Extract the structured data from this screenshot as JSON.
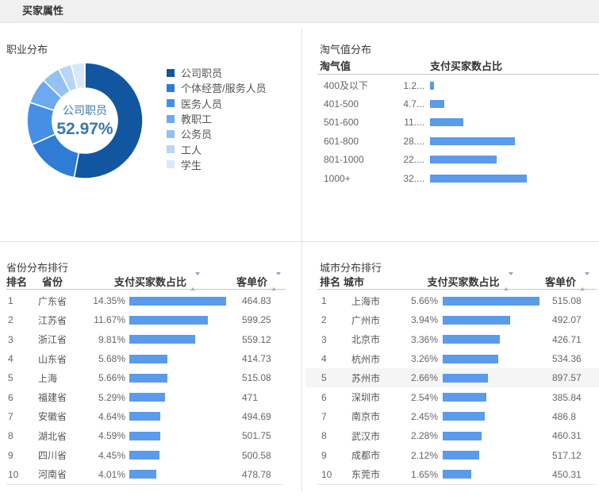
{
  "header": {
    "title": "买家属性"
  },
  "colors": {
    "bar": "#5a9beb",
    "pie": [
      "#1356a0",
      "#2e7cd4",
      "#4590e6",
      "#6ca9ee",
      "#93c1f3",
      "#b8d5f7",
      "#d8e7fb"
    ],
    "center_text": "#3779b3",
    "highlight_row": "#f5f5f5"
  },
  "occupation": {
    "title": "职业分布",
    "center_label": "公司职员",
    "center_value": "52.97%",
    "legend": [
      "公司职员",
      "个体经营/服务人员",
      "医务人员",
      "教职工",
      "公务员",
      "工人",
      "学生"
    ]
  },
  "taoqi": {
    "title": "淘气值分布",
    "columns": {
      "label": "淘气值",
      "value": "支付买家数占比"
    },
    "rows": [
      {
        "label": "400及以下",
        "value_text": "1.2...",
        "value": 1.2
      },
      {
        "label": "401-500",
        "value_text": "4.7...",
        "value": 4.7
      },
      {
        "label": "501-600",
        "value_text": "11....",
        "value": 11
      },
      {
        "label": "601-800",
        "value_text": "28....",
        "value": 28
      },
      {
        "label": "801-1000",
        "value_text": "22....",
        "value": 22
      },
      {
        "label": "1000+",
        "value_text": "32....",
        "value": 32
      }
    ]
  },
  "province": {
    "title": "省份分布排行",
    "headers": {
      "rank": "排名",
      "name": "省份",
      "pct": "支付买家数占比",
      "price": "客单价"
    },
    "rows": [
      {
        "rank": "1",
        "name": "广东省",
        "pct": "14.35%",
        "pct_value": 14.35,
        "price": "464.83",
        "highlighted": false
      },
      {
        "rank": "2",
        "name": "江苏省",
        "pct": "11.67%",
        "pct_value": 11.67,
        "price": "599.25",
        "highlighted": false
      },
      {
        "rank": "3",
        "name": "浙江省",
        "pct": "9.81%",
        "pct_value": 9.81,
        "price": "559.12",
        "highlighted": false
      },
      {
        "rank": "4",
        "name": "山东省",
        "pct": "5.68%",
        "pct_value": 5.68,
        "price": "414.73",
        "highlighted": false
      },
      {
        "rank": "5",
        "name": "上海",
        "pct": "5.66%",
        "pct_value": 5.66,
        "price": "515.08",
        "highlighted": false
      },
      {
        "rank": "6",
        "name": "福建省",
        "pct": "5.29%",
        "pct_value": 5.29,
        "price": "471",
        "highlighted": false
      },
      {
        "rank": "7",
        "name": "安徽省",
        "pct": "4.64%",
        "pct_value": 4.64,
        "price": "494.69",
        "highlighted": false
      },
      {
        "rank": "8",
        "name": "湖北省",
        "pct": "4.59%",
        "pct_value": 4.59,
        "price": "501.75",
        "highlighted": false
      },
      {
        "rank": "9",
        "name": "四川省",
        "pct": "4.45%",
        "pct_value": 4.45,
        "price": "500.58",
        "highlighted": false
      },
      {
        "rank": "10",
        "name": "河南省",
        "pct": "4.01%",
        "pct_value": 4.01,
        "price": "478.78",
        "highlighted": false
      }
    ]
  },
  "city": {
    "title": "城市分布排行",
    "headers": {
      "rank": "排名",
      "name": "城市",
      "pct": "支付买家数占比",
      "price": "客单价"
    },
    "rows": [
      {
        "rank": "1",
        "name": "上海市",
        "pct": "5.66%",
        "pct_value": 5.66,
        "price": "515.08",
        "highlighted": false
      },
      {
        "rank": "2",
        "name": "广州市",
        "pct": "3.94%",
        "pct_value": 3.94,
        "price": "492.07",
        "highlighted": false
      },
      {
        "rank": "3",
        "name": "北京市",
        "pct": "3.36%",
        "pct_value": 3.36,
        "price": "426.71",
        "highlighted": false
      },
      {
        "rank": "4",
        "name": "杭州市",
        "pct": "3.26%",
        "pct_value": 3.26,
        "price": "534.36",
        "highlighted": false
      },
      {
        "rank": "5",
        "name": "苏州市",
        "pct": "2.66%",
        "pct_value": 2.66,
        "price": "897.57",
        "highlighted": true
      },
      {
        "rank": "6",
        "name": "深圳市",
        "pct": "2.54%",
        "pct_value": 2.54,
        "price": "385.84",
        "highlighted": false
      },
      {
        "rank": "7",
        "name": "南京市",
        "pct": "2.45%",
        "pct_value": 2.45,
        "price": "486.8",
        "highlighted": false
      },
      {
        "rank": "8",
        "name": "武汉市",
        "pct": "2.28%",
        "pct_value": 2.28,
        "price": "460.31",
        "highlighted": false
      },
      {
        "rank": "9",
        "name": "成都市",
        "pct": "2.12%",
        "pct_value": 2.12,
        "price": "517.12",
        "highlighted": false
      },
      {
        "rank": "10",
        "name": "东莞市",
        "pct": "1.65%",
        "pct_value": 1.65,
        "price": "450.31",
        "highlighted": false
      }
    ]
  },
  "chart_data": [
    {
      "type": "pie",
      "title": "职业分布",
      "donut": true,
      "legend_position": "right",
      "labels": [
        "公司职员",
        "个体经营/服务人员",
        "医务人员",
        "教职工",
        "公务员",
        "工人",
        "学生"
      ],
      "values": [
        52.97,
        15.2,
        11.9,
        7.2,
        5.2,
        3.7,
        3.8
      ],
      "annotation": "公司职员 52.97%"
    },
    {
      "type": "bar",
      "orientation": "horizontal",
      "title": "淘气值分布",
      "xlabel": "支付买家数占比",
      "categories": [
        "400及以下",
        "401-500",
        "501-600",
        "601-800",
        "801-1000",
        "1000+"
      ],
      "values": [
        1.2,
        4.7,
        11,
        28,
        22,
        32
      ],
      "value_labels": [
        "1.2...",
        "4.7...",
        "11....",
        "28....",
        "22....",
        "32...."
      ]
    },
    {
      "type": "bar",
      "orientation": "horizontal",
      "title": "省份分布排行 支付买家数占比",
      "categories": [
        "广东省",
        "江苏省",
        "浙江省",
        "山东省",
        "上海",
        "福建省",
        "安徽省",
        "湖北省",
        "四川省",
        "河南省"
      ],
      "values": [
        14.35,
        11.67,
        9.81,
        5.68,
        5.66,
        5.29,
        4.64,
        4.59,
        4.45,
        4.01
      ]
    },
    {
      "type": "bar",
      "orientation": "horizontal",
      "title": "城市分布排行 支付买家数占比",
      "categories": [
        "上海市",
        "广州市",
        "北京市",
        "杭州市",
        "苏州市",
        "深圳市",
        "南京市",
        "武汉市",
        "成都市",
        "东莞市"
      ],
      "values": [
        5.66,
        3.94,
        3.36,
        3.26,
        2.66,
        2.54,
        2.45,
        2.28,
        2.12,
        1.65
      ]
    }
  ]
}
